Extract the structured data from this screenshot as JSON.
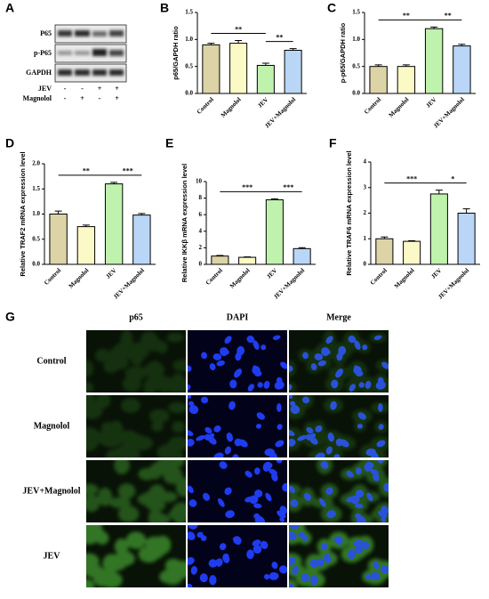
{
  "blot": {
    "panel": "A",
    "rows": [
      "P65",
      "p-P65",
      "GAPDH"
    ],
    "treatments": [
      {
        "name": "JEV",
        "signs": [
          "-",
          "-",
          "+",
          "+"
        ]
      },
      {
        "name": "Magnolol",
        "signs": [
          "-",
          "+",
          "-",
          "+"
        ]
      }
    ]
  },
  "chart_data": [
    {
      "type": "bar",
      "panel": "B",
      "ylabel": "p65/GAPDH ratio",
      "categories": [
        "Control",
        "Magnolol",
        "JEV",
        "JEV+Magnolol"
      ],
      "values": [
        0.9,
        0.93,
        0.52,
        0.8
      ],
      "errors": [
        0.03,
        0.05,
        0.04,
        0.03
      ],
      "colors": [
        "#dcd3a6",
        "#fbf9c6",
        "#bff2ac",
        "#b9d6f6"
      ],
      "ylim": [
        0,
        1.5
      ],
      "yticks": [
        {
          "value": 0,
          "label": "0.0"
        },
        {
          "value": 0.5,
          "label": "0.5"
        },
        {
          "value": 1,
          "label": "1.0"
        },
        {
          "value": 1.5,
          "label": "1.5"
        }
      ],
      "annotations": [
        {
          "label": "**",
          "between": [
            "Control",
            "JEV"
          ]
        },
        {
          "label": "**",
          "between": [
            "JEV",
            "JEV+Magnolol"
          ]
        }
      ]
    },
    {
      "type": "bar",
      "panel": "C",
      "ylabel": "p-p65/GAPDH ratio",
      "categories": [
        "Control",
        "Magnolol",
        "JEV",
        "JEV+Magnolol"
      ],
      "values": [
        0.5,
        0.5,
        1.2,
        0.88
      ],
      "errors": [
        0.03,
        0.03,
        0.03,
        0.03
      ],
      "colors": [
        "#dcd3a6",
        "#fbf9c6",
        "#bff2ac",
        "#b9d6f6"
      ],
      "ylim": [
        0,
        1.5
      ],
      "yticks": [
        {
          "value": 0,
          "label": "0.0"
        },
        {
          "value": 0.5,
          "label": "0.5"
        },
        {
          "value": 1,
          "label": "1.0"
        },
        {
          "value": 1.5,
          "label": "1.5"
        }
      ],
      "annotations": [
        {
          "label": "**",
          "between": [
            "Control",
            "JEV"
          ]
        },
        {
          "label": "**",
          "between": [
            "JEV",
            "JEV+Magnolol"
          ]
        }
      ]
    },
    {
      "type": "bar",
      "panel": "D",
      "ylabel": "Relative TRAF2 mRNA expression level",
      "categories": [
        "Control",
        "Magnolol",
        "JEV",
        "JEV+Magnolol"
      ],
      "values": [
        1.0,
        0.75,
        1.6,
        0.98
      ],
      "errors": [
        0.06,
        0.03,
        0.03,
        0.03
      ],
      "colors": [
        "#dcd3a6",
        "#fbf9c6",
        "#bff2ac",
        "#b9d6f6"
      ],
      "ylim": [
        0,
        2
      ],
      "yticks": [
        {
          "value": 0,
          "label": "0.0"
        },
        {
          "value": 0.5,
          "label": "0.5"
        },
        {
          "value": 1,
          "label": "1.0"
        },
        {
          "value": 1.5,
          "label": "1.5"
        },
        {
          "value": 2,
          "label": "2.0"
        }
      ],
      "annotations": [
        {
          "label": "**",
          "between": [
            "Control",
            "JEV"
          ]
        },
        {
          "label": "***",
          "between": [
            "JEV",
            "JEV+Magnolol"
          ]
        }
      ]
    },
    {
      "type": "bar",
      "panel": "E",
      "ylabel": "Relative IKKβ mRNA expression level",
      "categories": [
        "Control",
        "Magnolol",
        "JEV",
        "JEV+Magnolol"
      ],
      "values": [
        1.0,
        0.85,
        7.8,
        1.9
      ],
      "errors": [
        0.08,
        0.05,
        0.12,
        0.12
      ],
      "colors": [
        "#dcd3a6",
        "#fbf9c6",
        "#bff2ac",
        "#b9d6f6"
      ],
      "ylim": [
        0,
        10
      ],
      "yticks": [
        0,
        2,
        4,
        6,
        8,
        10
      ],
      "annotations": [
        {
          "label": "***",
          "between": [
            "Control",
            "JEV"
          ]
        },
        {
          "label": "***",
          "between": [
            "JEV",
            "JEV+Magnolol"
          ]
        }
      ]
    },
    {
      "type": "bar",
      "panel": "F",
      "ylabel": "Relative TRAF6 mRNA expression level",
      "categories": [
        "Control",
        "Magnolol",
        "JEV",
        "JEV+Magnolol"
      ],
      "values": [
        1.0,
        0.9,
        2.75,
        2.0
      ],
      "errors": [
        0.07,
        0.02,
        0.15,
        0.17
      ],
      "colors": [
        "#dcd3a6",
        "#fbf9c6",
        "#bff2ac",
        "#b9d6f6"
      ],
      "ylim": [
        0,
        4
      ],
      "yticks": [
        0,
        1,
        2,
        3,
        4
      ],
      "annotations": [
        {
          "label": "***",
          "between": [
            "Control",
            "JEV"
          ]
        },
        {
          "label": "*",
          "between": [
            "JEV",
            "JEV+Magnolol"
          ]
        }
      ]
    }
  ],
  "microscopy": {
    "panel": "G",
    "columns": [
      "p65",
      "DAPI",
      "Merge"
    ],
    "rows": [
      "Control",
      "Magnolol",
      "JEV+Magnolol",
      "JEV"
    ]
  }
}
